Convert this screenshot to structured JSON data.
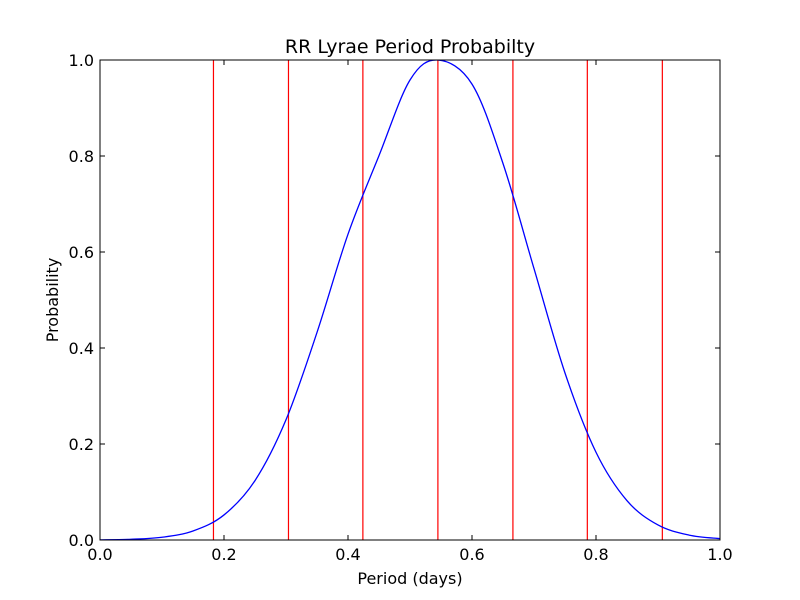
{
  "chart_data": {
    "type": "line",
    "title": "RR Lyrae Period Probabilty",
    "xlabel": "Period (days)",
    "ylabel": "Probability",
    "xlim": [
      0.0,
      1.0
    ],
    "ylim": [
      0.0,
      1.0
    ],
    "xticks": [
      "0.0",
      "0.2",
      "0.4",
      "0.6",
      "0.8",
      "1.0"
    ],
    "yticks": [
      "0.0",
      "0.2",
      "0.4",
      "0.6",
      "0.8",
      "1.0"
    ],
    "grid": false,
    "legend": "none",
    "series": [
      {
        "color": "#0000ff",
        "x": [
          0.0,
          0.05,
          0.1,
          0.15,
          0.2,
          0.25,
          0.3,
          0.35,
          0.4,
          0.45,
          0.5,
          0.545,
          0.6,
          0.65,
          0.7,
          0.75,
          0.8,
          0.85,
          0.9,
          0.95,
          1.0
        ],
        "y": [
          0.0003,
          0.0015,
          0.0057,
          0.0188,
          0.0522,
          0.1237,
          0.2504,
          0.4324,
          0.6371,
          0.8007,
          0.9583,
          1.0,
          0.9498,
          0.7844,
          0.5654,
          0.3479,
          0.1828,
          0.0819,
          0.0313,
          0.0102,
          0.0028
        ]
      }
    ],
    "vlines": {
      "color": "#ff0000",
      "x": [
        0.183,
        0.304,
        0.424,
        0.545,
        0.666,
        0.786,
        0.907
      ]
    }
  }
}
